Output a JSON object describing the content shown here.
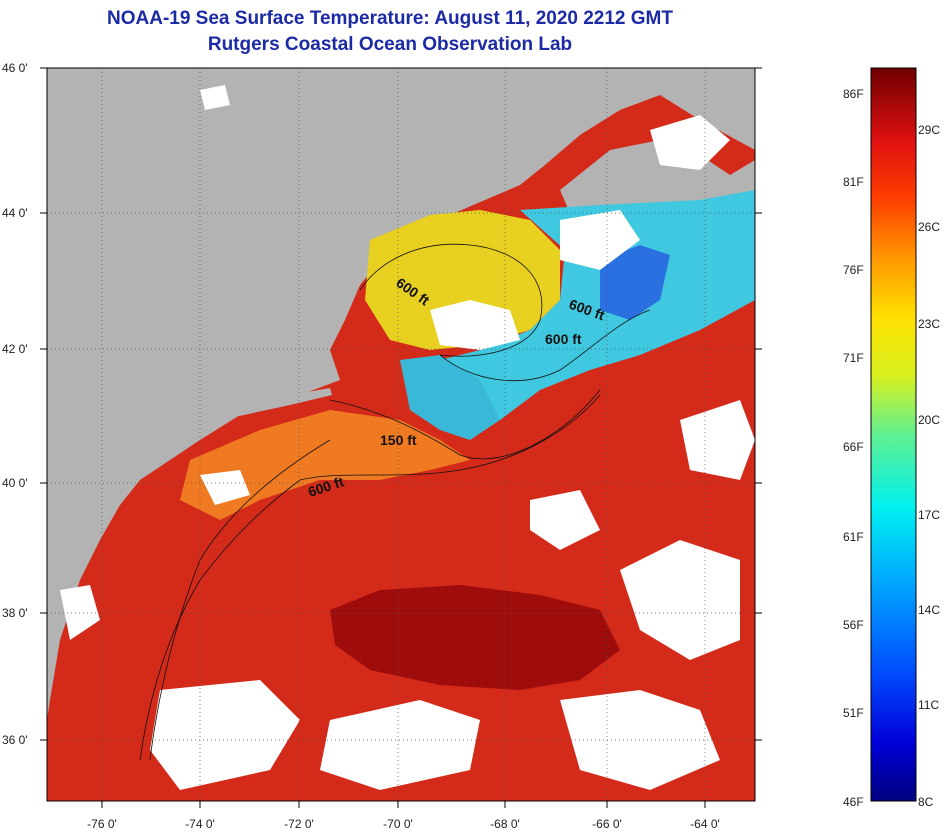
{
  "title": {
    "line1": "NOAA-19 Sea Surface Temperature:  August 11, 2020 2212 GMT",
    "line2": "Rutgers Coastal Ocean Observation Lab"
  },
  "map": {
    "lat_labels": [
      "46 0'",
      "44 0'",
      "42 0'",
      "40 0'",
      "38 0'",
      "36 0'"
    ],
    "lon_labels": [
      "-76 0'",
      "-74 0'",
      "-72 0'",
      "-70 0'",
      "-68 0'",
      "-66 0'",
      "-64 0'"
    ],
    "contour_labels": [
      "600 ft",
      "600 ft",
      "600 ft",
      "150 ft",
      "600 ft"
    ],
    "colors": {
      "land": "#b3b3b3",
      "cloud": "#ffffff",
      "warm": "#d82818",
      "hot": "#a31010",
      "orange": "#f08020",
      "yellow": "#e8d820",
      "cyan": "#40d0e0",
      "blue": "#2060e0"
    }
  },
  "colorbar": {
    "fahrenheit": [
      "86F",
      "81F",
      "76F",
      "71F",
      "66F",
      "61F",
      "56F",
      "51F",
      "46F"
    ],
    "celsius": [
      "29C",
      "26C",
      "23C",
      "20C",
      "17C",
      "14C",
      "11C",
      "8C"
    ],
    "range_f": [
      46,
      87.8
    ]
  }
}
